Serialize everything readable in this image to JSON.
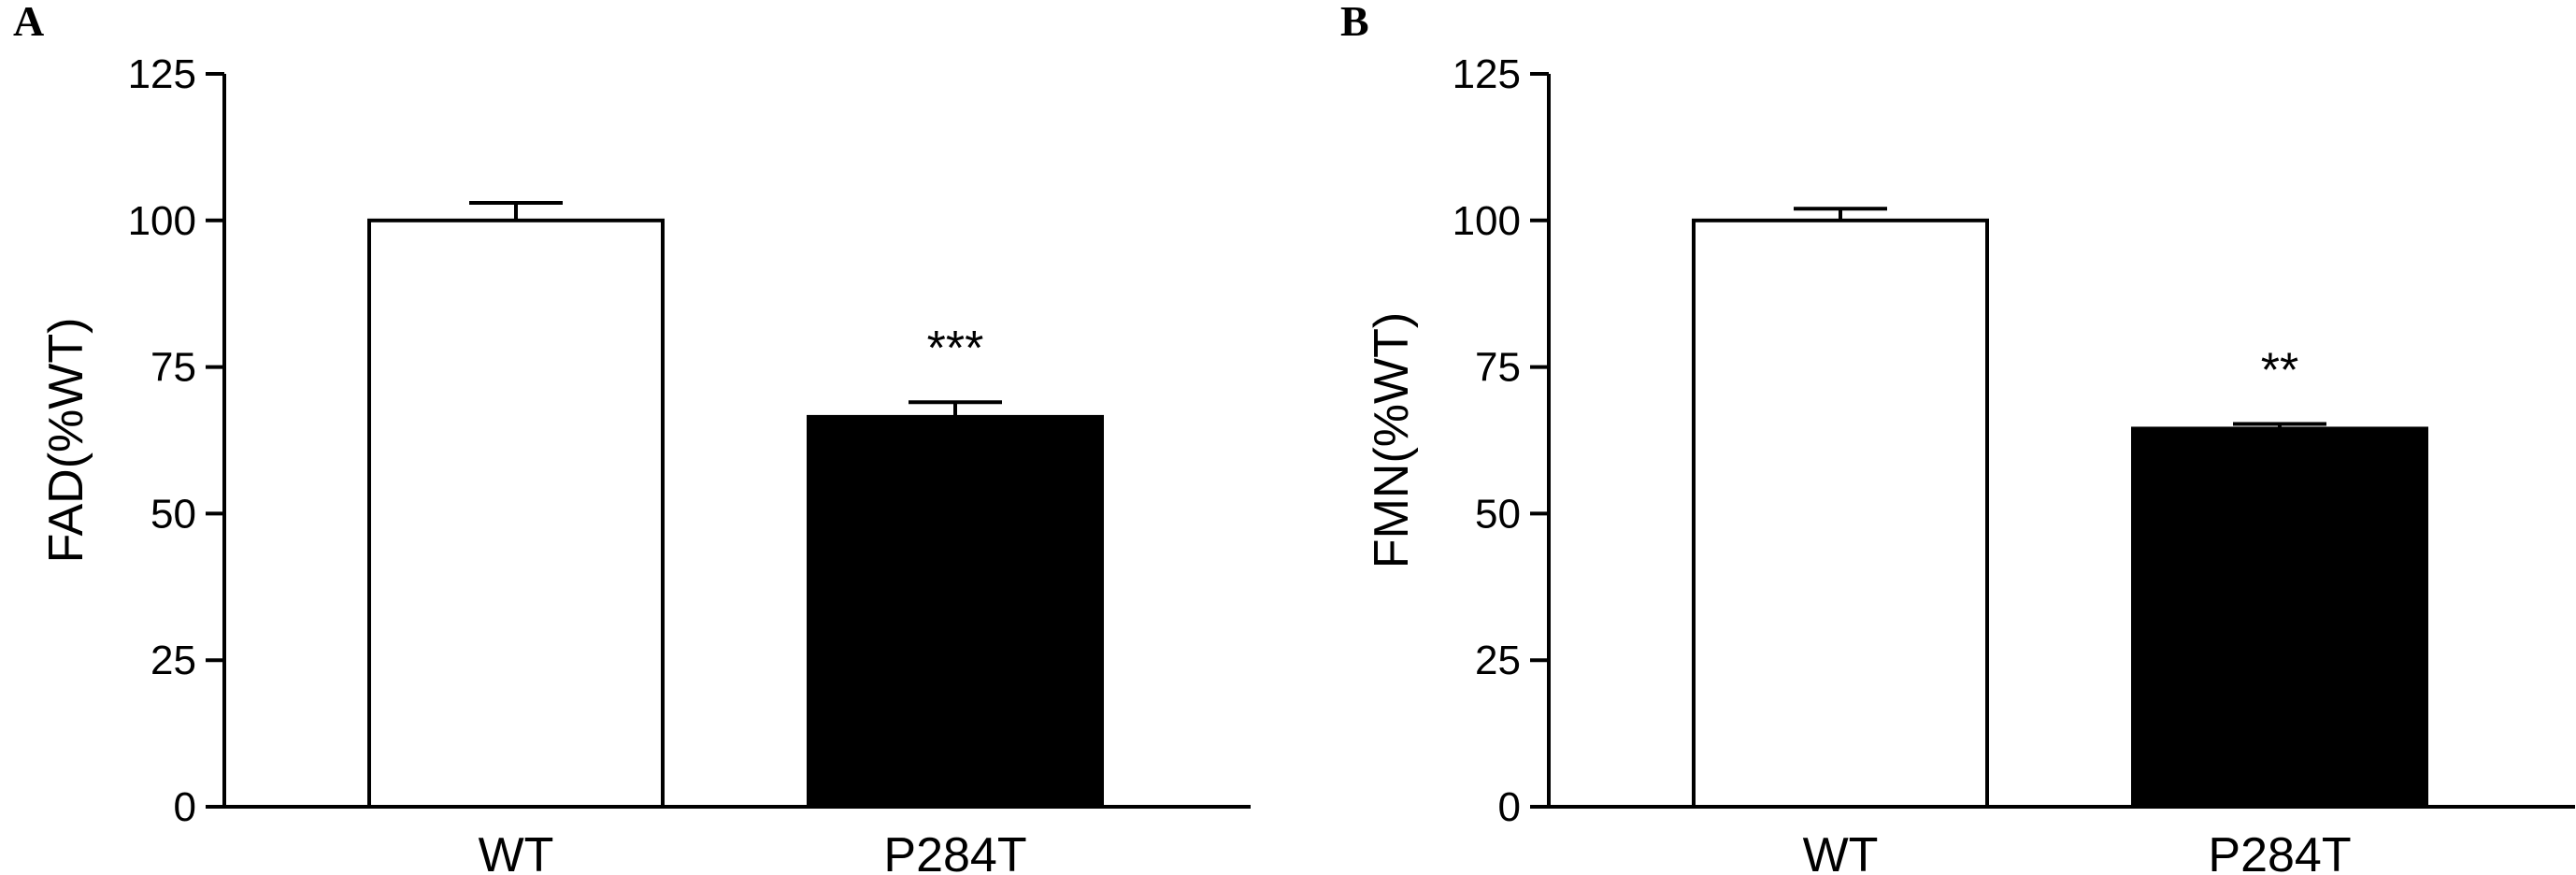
{
  "chart_data": [
    {
      "type": "bar",
      "panel_label": "A",
      "ylabel": "FAD(%WT)",
      "ylim": [
        0,
        125
      ],
      "yticks": [
        "0",
        "25",
        "50",
        "75",
        "100",
        "125"
      ],
      "ytick_values": [
        0,
        25,
        50,
        75,
        100,
        125
      ],
      "categories": [
        "WT",
        "P284T"
      ],
      "values": [
        100,
        66.5
      ],
      "errors": [
        3,
        2.5
      ],
      "bar_colors": [
        "#ffffff",
        "#000000"
      ],
      "significance": [
        "",
        "***"
      ],
      "grid": false
    },
    {
      "type": "bar",
      "panel_label": "B",
      "ylabel": "FMN(%WT)",
      "ylim": [
        0,
        125
      ],
      "yticks": [
        "0",
        "25",
        "50",
        "75",
        "100",
        "125"
      ],
      "ytick_values": [
        0,
        25,
        50,
        75,
        100,
        125
      ],
      "categories": [
        "WT",
        "P284T"
      ],
      "values": [
        100,
        64.5
      ],
      "errors": [
        2,
        0.8
      ],
      "bar_colors": [
        "#ffffff",
        "#000000"
      ],
      "significance": [
        "",
        "**"
      ],
      "grid": false
    }
  ]
}
